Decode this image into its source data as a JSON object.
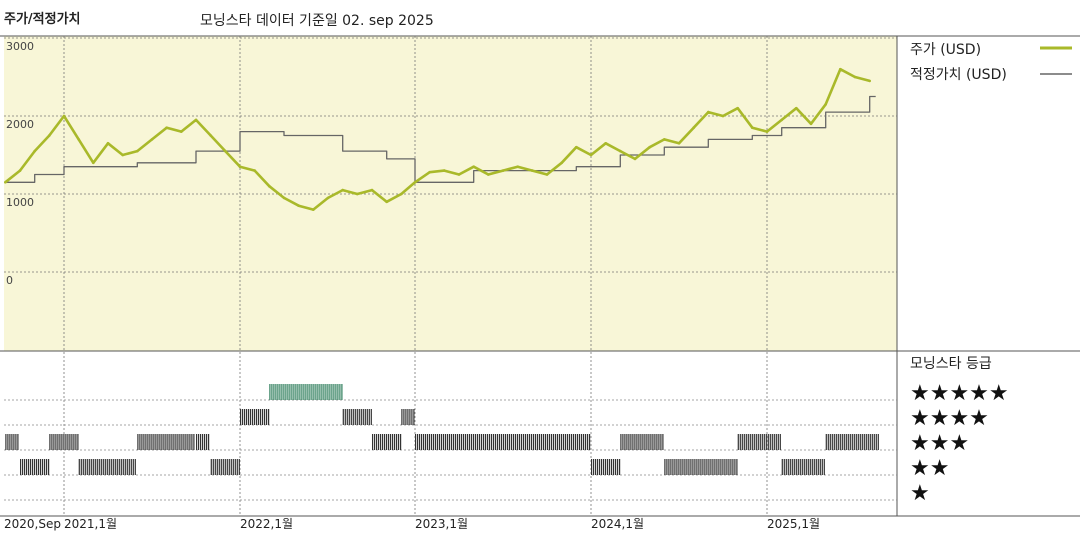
{
  "header": {
    "title": "주가/적정가치",
    "subtitle": "모닝스타 데이터 기준일 02. sep 2025"
  },
  "colors": {
    "price_line": "#a9b92a",
    "fair_value_line": "#666666",
    "plot_bg": "#f8f6d7",
    "bar_green": "#2e7d5b",
    "bar_dark": "#333333"
  },
  "chart_data": {
    "type": "line",
    "title": "주가/적정가치",
    "subtitle": "모닝스타 데이터 기준일 02. sep 2025",
    "x_tick_labels": [
      "2020,Sep",
      "2021,1월",
      "2022,1월",
      "2023,1월",
      "2024,1월",
      "2025,1월"
    ],
    "y_tick_labels": [
      "3000",
      "2000",
      "1000",
      "0"
    ],
    "ylim": [
      0,
      3000
    ],
    "grid": true,
    "series": [
      {
        "name": "주가 (USD)",
        "x": [
          "2020-09",
          "2020-10",
          "2020-11",
          "2020-12",
          "2021-01",
          "2021-02",
          "2021-03",
          "2021-04",
          "2021-05",
          "2021-06",
          "2021-07",
          "2021-08",
          "2021-09",
          "2021-10",
          "2021-11",
          "2021-12",
          "2022-01",
          "2022-02",
          "2022-03",
          "2022-04",
          "2022-05",
          "2022-06",
          "2022-07",
          "2022-08",
          "2022-09",
          "2022-10",
          "2022-11",
          "2022-12",
          "2023-01",
          "2023-02",
          "2023-03",
          "2023-04",
          "2023-05",
          "2023-06",
          "2023-07",
          "2023-08",
          "2023-09",
          "2023-10",
          "2023-11",
          "2023-12",
          "2024-01",
          "2024-02",
          "2024-03",
          "2024-04",
          "2024-05",
          "2024-06",
          "2024-07",
          "2024-08",
          "2024-09",
          "2024-10",
          "2024-11",
          "2024-12",
          "2025-01",
          "2025-02",
          "2025-03",
          "2025-04",
          "2025-05",
          "2025-06",
          "2025-07",
          "2025-08"
        ],
        "values": [
          1150,
          1300,
          1550,
          1750,
          2000,
          1700,
          1400,
          1650,
          1500,
          1550,
          1700,
          1850,
          1800,
          1950,
          1750,
          1550,
          1350,
          1300,
          1100,
          950,
          850,
          800,
          950,
          1050,
          1000,
          1050,
          900,
          1000,
          1150,
          1280,
          1300,
          1250,
          1350,
          1250,
          1300,
          1350,
          1300,
          1250,
          1400,
          1600,
          1500,
          1650,
          1550,
          1450,
          1600,
          1700,
          1650,
          1850,
          2050,
          2000,
          2100,
          1850,
          1800,
          1950,
          2100,
          1900,
          2150,
          2600,
          2500,
          2450
        ]
      },
      {
        "name": "적정가치 (USD)",
        "x": [
          "2020-09",
          "2020-11",
          "2021-01",
          "2021-06",
          "2021-10",
          "2022-01",
          "2022-04",
          "2022-08",
          "2022-11",
          "2023-01",
          "2023-05",
          "2023-09",
          "2023-12",
          "2024-03",
          "2024-06",
          "2024-09",
          "2024-12",
          "2025-02",
          "2025-05",
          "2025-07",
          "2025-08"
        ],
        "values": [
          1150,
          1250,
          1350,
          1400,
          1550,
          1800,
          1750,
          1550,
          1450,
          1150,
          1300,
          1300,
          1350,
          1500,
          1600,
          1700,
          1750,
          1850,
          2050,
          2050,
          2250
        ]
      }
    ]
  },
  "rating": {
    "title": "모닝스타 등급",
    "levels": [
      "★★★★★",
      "★★★★",
      "★★★",
      "★★",
      "★"
    ],
    "rating_by_month": [
      {
        "month": "2020-09",
        "stars": 3
      },
      {
        "month": "2020-10",
        "stars": 2
      },
      {
        "month": "2020-12",
        "stars": 3
      },
      {
        "month": "2021-02",
        "stars": 2
      },
      {
        "month": "2021-06",
        "stars": 3
      },
      {
        "month": "2021-10",
        "stars": 3
      },
      {
        "month": "2021-11",
        "stars": 2
      },
      {
        "month": "2022-01",
        "stars": 4
      },
      {
        "month": "2022-03",
        "stars": 5
      },
      {
        "month": "2022-06",
        "stars": 5
      },
      {
        "month": "2022-08",
        "stars": 4
      },
      {
        "month": "2022-10",
        "stars": 3
      },
      {
        "month": "2022-12",
        "stars": 4
      },
      {
        "month": "2023-01",
        "stars": 3
      },
      {
        "month": "2024-01",
        "stars": 2
      },
      {
        "month": "2024-03",
        "stars": 3
      },
      {
        "month": "2024-06",
        "stars": 2
      },
      {
        "month": "2024-09",
        "stars": 2
      },
      {
        "month": "2024-11",
        "stars": 3
      },
      {
        "month": "2025-02",
        "stars": 2
      },
      {
        "month": "2025-05",
        "stars": 3
      }
    ]
  }
}
